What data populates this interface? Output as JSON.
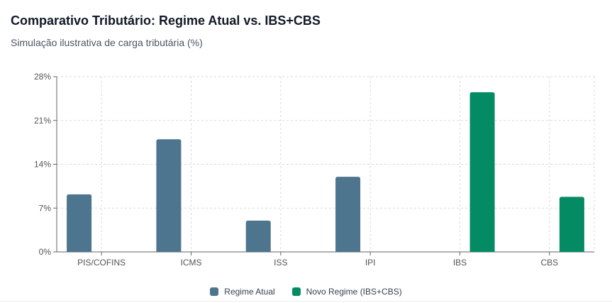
{
  "header": {
    "title": "Comparativo Tributário: Regime Atual vs. IBS+CBS",
    "subtitle": "Simulação ilustrativa de carga tributária (%)"
  },
  "colors": {
    "regime_atual": "#4e758e",
    "novo_regime": "#058b64",
    "grid": "#d9d9d9",
    "axis": "#666666",
    "tick_text": "#555555"
  },
  "chart_data": {
    "type": "bar",
    "title": "Comparativo Tributário: Regime Atual vs. IBS+CBS",
    "subtitle": "Simulação ilustrativa de carga tributária (%)",
    "xlabel": "",
    "ylabel": "",
    "categories": [
      "PIS/COFINS",
      "ICMS",
      "ISS",
      "IPI",
      "IBS",
      "CBS"
    ],
    "yticks": [
      0,
      7,
      14,
      21,
      28
    ],
    "ytick_labels": [
      "0%",
      "7%",
      "14%",
      "21%",
      "28%"
    ],
    "ylim": [
      0,
      28
    ],
    "grid": true,
    "legend_position": "bottom-center",
    "series": [
      {
        "name": "Regime Atual",
        "values": [
          9.2,
          18,
          5,
          12,
          null,
          null
        ]
      },
      {
        "name": "Novo Regime (IBS+CBS)",
        "values": [
          null,
          null,
          null,
          null,
          25.5,
          8.8
        ]
      }
    ]
  }
}
